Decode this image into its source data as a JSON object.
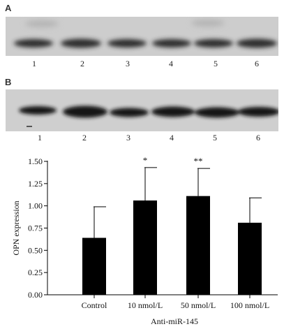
{
  "panels": {
    "a": {
      "label": "A",
      "lanes": [
        "1",
        "2",
        "3",
        "4",
        "5",
        "6"
      ]
    },
    "b": {
      "label": "B",
      "lanes": [
        "1",
        "2",
        "3",
        "4",
        "5",
        "6"
      ]
    }
  },
  "chart_data": {
    "type": "bar",
    "categories": [
      "Control",
      "10 nmol/L",
      "50 nmol/L",
      "100 nmol/L"
    ],
    "values": [
      0.64,
      1.06,
      1.11,
      0.81
    ],
    "errors": [
      0.35,
      0.37,
      0.31,
      0.28
    ],
    "significance": [
      "",
      "*",
      "**",
      ""
    ],
    "ylabel": "OPN expression",
    "xlabel": "Anti-miR-145",
    "ylim": [
      0,
      1.5
    ],
    "yticks": [
      "0.00",
      "0.25",
      "0.50",
      "0.75",
      "1.00",
      "1.25",
      "1.50"
    ],
    "grid": false,
    "bar_color": "#000000"
  }
}
